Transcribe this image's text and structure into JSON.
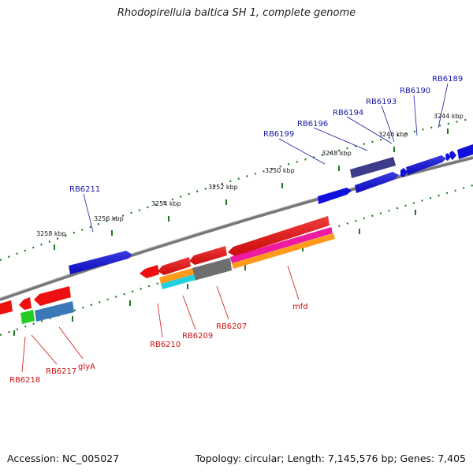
{
  "title": "Rhodopirellula baltica SH 1, complete genome",
  "footer": {
    "accession": "Accession: NC_005027",
    "summary": "Topology: circular; Length: 7,145,576 bp; Genes: 7,405"
  },
  "scale_labels": [
    "3244 kbp",
    "3246 kbp",
    "3248 kbp",
    "3250 kbp",
    "3252 kbp",
    "3254 kbp",
    "3256 kbp",
    "3258 kbp"
  ],
  "upper_gene_labels": [
    "RB6189",
    "RB6190",
    "RB6193",
    "RB6194",
    "RB6196",
    "RB6199",
    "RB6211"
  ],
  "lower_gene_labels": [
    "mfd",
    "RB6207",
    "RB6209",
    "RB6210",
    "glyA",
    "RB6217",
    "RB6218"
  ],
  "colors": {
    "backbone": "#808080",
    "tick": "#1f7a1f",
    "forward": "#1010dd",
    "reverse": "#ee1010",
    "upper_label": "#1a1aa6",
    "lower_label": "#cc1010"
  }
}
